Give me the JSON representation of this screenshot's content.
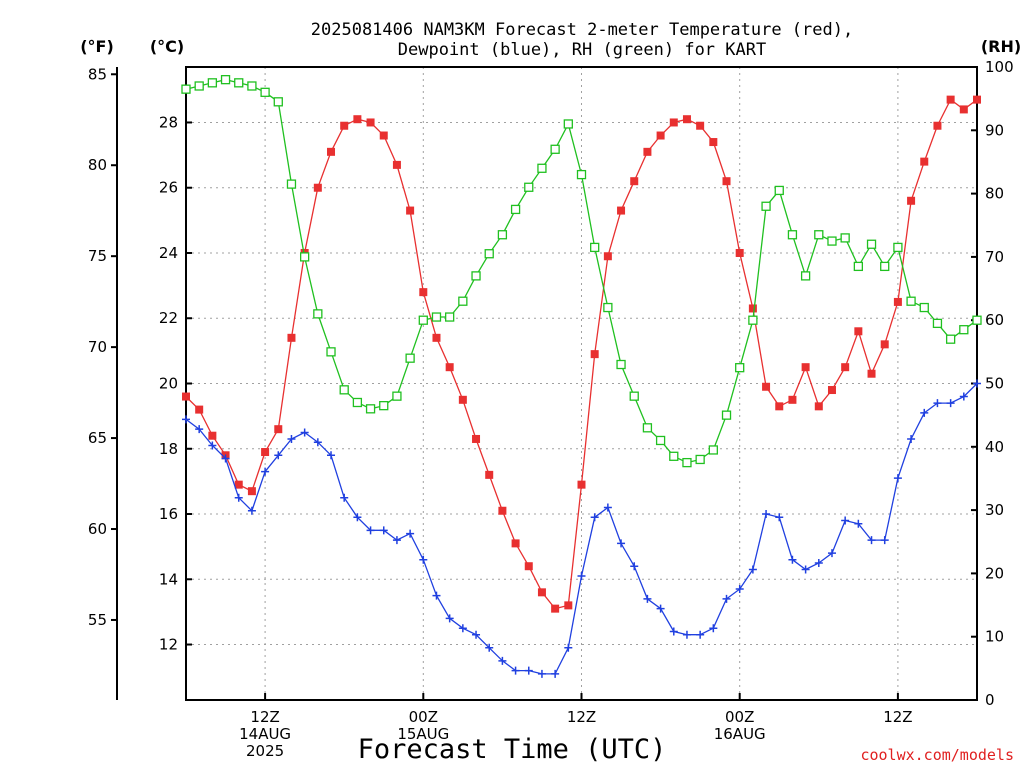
{
  "page": {
    "credit": "coolwx.com/models"
  },
  "chart_data": {
    "type": "line",
    "title_lines": [
      "2025081406 NAM3KM Forecast 2-meter Temperature (red),",
      "Dewpoint (blue), RH (green) for KART"
    ],
    "xlabel": "Forecast Time (UTC)",
    "x_unit": "hours from 2025-08-14 06Z",
    "xlim": [
      0,
      60
    ],
    "x_ticks": [
      {
        "x": 6,
        "lines": [
          "12Z",
          "14AUG",
          "2025"
        ]
      },
      {
        "x": 18,
        "lines": [
          "00Z",
          "15AUG"
        ]
      },
      {
        "x": 30,
        "lines": [
          "12Z"
        ]
      },
      {
        "x": 42,
        "lines": [
          "00Z",
          "16AUG"
        ]
      },
      {
        "x": 54,
        "lines": [
          "12Z"
        ]
      }
    ],
    "axes": {
      "fahrenheit": {
        "label": "(°F)",
        "ylim": [
          50.6,
          85.4
        ],
        "ticks": [
          55,
          60,
          65,
          70,
          75,
          80,
          85
        ]
      },
      "celsius": {
        "label": "(°C)",
        "ylim": [
          10.3,
          29.7
        ],
        "ticks": [
          12,
          14,
          16,
          18,
          20,
          22,
          24,
          26,
          28
        ]
      },
      "rh": {
        "label": "(RH)",
        "ylim": [
          0,
          100
        ],
        "ticks": [
          0,
          10,
          20,
          30,
          40,
          50,
          60,
          70,
          80,
          90,
          100
        ]
      }
    },
    "grid": true,
    "x": [
      0,
      1,
      2,
      3,
      4,
      5,
      6,
      7,
      8,
      9,
      10,
      11,
      12,
      13,
      14,
      15,
      16,
      17,
      18,
      19,
      20,
      21,
      22,
      23,
      24,
      25,
      26,
      27,
      28,
      29,
      30,
      31,
      32,
      33,
      34,
      35,
      36,
      37,
      38,
      39,
      40,
      41,
      42,
      43,
      44,
      45,
      46,
      47,
      48,
      49,
      50,
      51,
      52,
      53,
      54,
      55,
      56,
      57,
      58,
      59,
      60
    ],
    "series": [
      {
        "name": "2-meter Temperature",
        "color": "#e83030",
        "marker": "filled-square",
        "axis": "celsius",
        "values": [
          19.6,
          19.2,
          18.4,
          17.8,
          16.9,
          16.7,
          17.9,
          18.6,
          21.4,
          24.0,
          26.0,
          27.1,
          27.9,
          28.1,
          28.0,
          27.6,
          26.7,
          25.3,
          22.8,
          21.4,
          20.5,
          19.5,
          18.3,
          17.2,
          16.1,
          15.1,
          14.4,
          13.6,
          13.1,
          13.2,
          16.9,
          20.9,
          23.9,
          25.3,
          26.2,
          27.1,
          27.6,
          28.0,
          28.1,
          27.9,
          27.4,
          26.2,
          24.0,
          22.3,
          19.9,
          19.3,
          19.5,
          20.5,
          19.3,
          19.8,
          20.5,
          21.6,
          20.3,
          21.2,
          22.5,
          25.6,
          26.8,
          27.9,
          28.7,
          28.4,
          28.7
        ]
      },
      {
        "name": "Dewpoint",
        "color": "#2040e0",
        "marker": "plus",
        "axis": "celsius",
        "values": [
          18.9,
          18.6,
          18.1,
          17.7,
          16.5,
          16.1,
          17.3,
          17.8,
          18.3,
          18.5,
          18.2,
          17.8,
          16.5,
          15.9,
          15.5,
          15.5,
          15.2,
          15.4,
          14.6,
          13.5,
          12.8,
          12.5,
          12.3,
          11.9,
          11.5,
          11.2,
          11.2,
          11.1,
          11.1,
          11.9,
          14.1,
          15.9,
          16.2,
          15.1,
          14.4,
          13.4,
          13.1,
          12.4,
          12.3,
          12.3,
          12.5,
          13.4,
          13.7,
          14.3,
          16.0,
          15.9,
          14.6,
          14.3,
          14.5,
          14.8,
          15.8,
          15.7,
          15.2,
          15.2,
          17.1,
          18.3,
          19.1,
          19.4,
          19.4,
          19.6,
          20.0
        ]
      },
      {
        "name": "RH",
        "color": "#20c020",
        "marker": "open-square",
        "axis": "rh",
        "values": [
          96.5,
          97,
          97.5,
          98,
          97.5,
          97,
          96,
          94.5,
          81.5,
          70,
          61,
          55,
          49,
          47,
          46,
          46.5,
          48,
          54,
          60,
          60.5,
          60.5,
          63,
          67,
          70.5,
          73.5,
          77.5,
          81,
          84,
          87,
          91,
          83,
          71.5,
          62,
          53,
          48,
          43,
          41,
          38.5,
          37.5,
          38,
          39.5,
          45,
          52.5,
          60,
          78,
          80.5,
          73.5,
          67,
          73.5,
          72.5,
          73,
          68.5,
          72,
          68.5,
          71.5,
          63,
          62,
          59.5,
          57,
          58.5,
          60
        ]
      }
    ]
  }
}
